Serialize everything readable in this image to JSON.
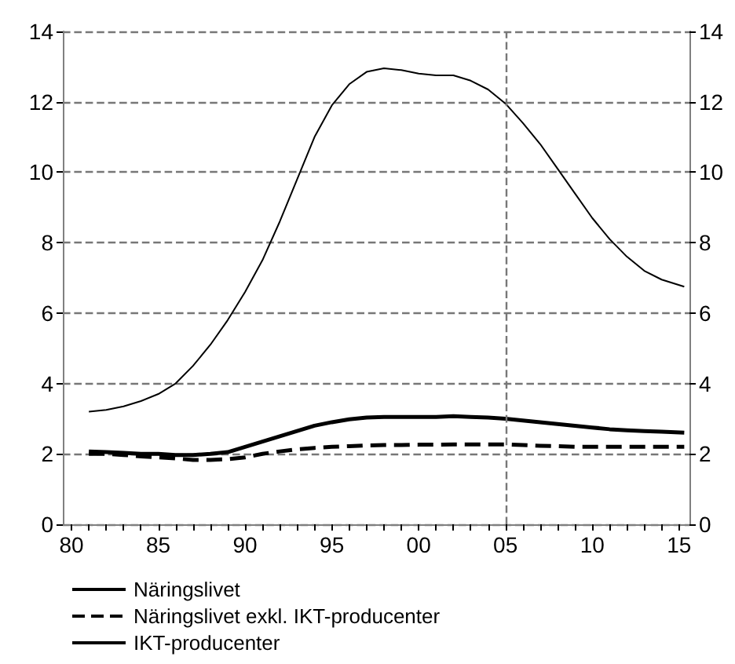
{
  "chart_data": {
    "type": "line",
    "x": [
      1981,
      1982,
      1983,
      1984,
      1985,
      1986,
      1987,
      1988,
      1989,
      1990,
      1991,
      1992,
      1993,
      1994,
      1995,
      1996,
      1997,
      1998,
      1999,
      2000,
      2001,
      2002,
      2003,
      2004,
      2005,
      2006,
      2007,
      2008,
      2009,
      2010,
      2011,
      2012,
      2013,
      2014,
      2015.3
    ],
    "series": [
      {
        "name": "Näringslivet",
        "color": "#000000",
        "line_style": "solid",
        "values": [
          2.07,
          2.05,
          2.03,
          2.0,
          2.0,
          1.97,
          1.97,
          2.0,
          2.05,
          2.2,
          2.35,
          2.5,
          2.65,
          2.8,
          2.9,
          2.98,
          3.03,
          3.05,
          3.05,
          3.05,
          3.05,
          3.07,
          3.05,
          3.03,
          3.0,
          2.95,
          2.9,
          2.85,
          2.8,
          2.75,
          2.7,
          2.67,
          2.65,
          2.63,
          2.6
        ]
      },
      {
        "name": "Näringslivet exkl. IKT-producenter",
        "color": "#000000",
        "line_style": "dashed",
        "values": [
          2.0,
          2.0,
          1.97,
          1.93,
          1.9,
          1.87,
          1.83,
          1.83,
          1.85,
          1.9,
          2.0,
          2.07,
          2.13,
          2.17,
          2.2,
          2.22,
          2.24,
          2.25,
          2.25,
          2.26,
          2.26,
          2.27,
          2.27,
          2.27,
          2.27,
          2.25,
          2.23,
          2.22,
          2.2,
          2.2,
          2.2,
          2.2,
          2.2,
          2.2,
          2.2
        ]
      },
      {
        "name": "IKT-producenter",
        "color": "#000000",
        "line_style": "solid",
        "values": [
          3.2,
          3.25,
          3.35,
          3.5,
          3.7,
          4.0,
          4.5,
          5.1,
          5.8,
          6.6,
          7.5,
          8.6,
          9.8,
          11.0,
          11.9,
          12.5,
          12.85,
          12.95,
          12.9,
          12.8,
          12.75,
          12.75,
          12.6,
          12.35,
          11.95,
          11.4,
          10.8,
          10.1,
          9.4,
          8.7,
          8.1,
          7.6,
          7.2,
          6.95,
          6.75
        ]
      }
    ],
    "xlim": [
      1979.5,
      2015.6
    ],
    "xticks": [
      {
        "value": 1980,
        "label": "80"
      },
      {
        "value": 1981,
        "label": null
      },
      {
        "value": 1982,
        "label": null
      },
      {
        "value": 1983,
        "label": null
      },
      {
        "value": 1984,
        "label": null
      },
      {
        "value": 1985,
        "label": "85"
      },
      {
        "value": 1986,
        "label": null
      },
      {
        "value": 1987,
        "label": null
      },
      {
        "value": 1988,
        "label": null
      },
      {
        "value": 1989,
        "label": null
      },
      {
        "value": 1990,
        "label": "90"
      },
      {
        "value": 1991,
        "label": null
      },
      {
        "value": 1992,
        "label": null
      },
      {
        "value": 1993,
        "label": null
      },
      {
        "value": 1994,
        "label": null
      },
      {
        "value": 1995,
        "label": "95"
      },
      {
        "value": 1996,
        "label": null
      },
      {
        "value": 1997,
        "label": null
      },
      {
        "value": 1998,
        "label": null
      },
      {
        "value": 1999,
        "label": null
      },
      {
        "value": 2000,
        "label": "00"
      },
      {
        "value": 2001,
        "label": null
      },
      {
        "value": 2002,
        "label": null
      },
      {
        "value": 2003,
        "label": null
      },
      {
        "value": 2004,
        "label": null
      },
      {
        "value": 2005,
        "label": "05"
      },
      {
        "value": 2006,
        "label": null
      },
      {
        "value": 2007,
        "label": null
      },
      {
        "value": 2008,
        "label": null
      },
      {
        "value": 2009,
        "label": null
      },
      {
        "value": 2010,
        "label": "10"
      },
      {
        "value": 2011,
        "label": null
      },
      {
        "value": 2012,
        "label": null
      },
      {
        "value": 2013,
        "label": null
      },
      {
        "value": 2014,
        "label": null
      },
      {
        "value": 2015,
        "label": "15"
      }
    ],
    "ylim": [
      0,
      14
    ],
    "yticks": [
      0,
      2,
      4,
      6,
      8,
      10,
      12,
      14
    ],
    "y2lim": [
      0,
      14
    ],
    "y2ticks": [
      0,
      2,
      4,
      6,
      8,
      10,
      12,
      14
    ],
    "ref_lines": [
      {
        "axis": "x",
        "value": 2005,
        "color": "#777777",
        "line_style": "dashed"
      }
    ],
    "grid": "y",
    "legend": "bottom",
    "marker": "none"
  }
}
